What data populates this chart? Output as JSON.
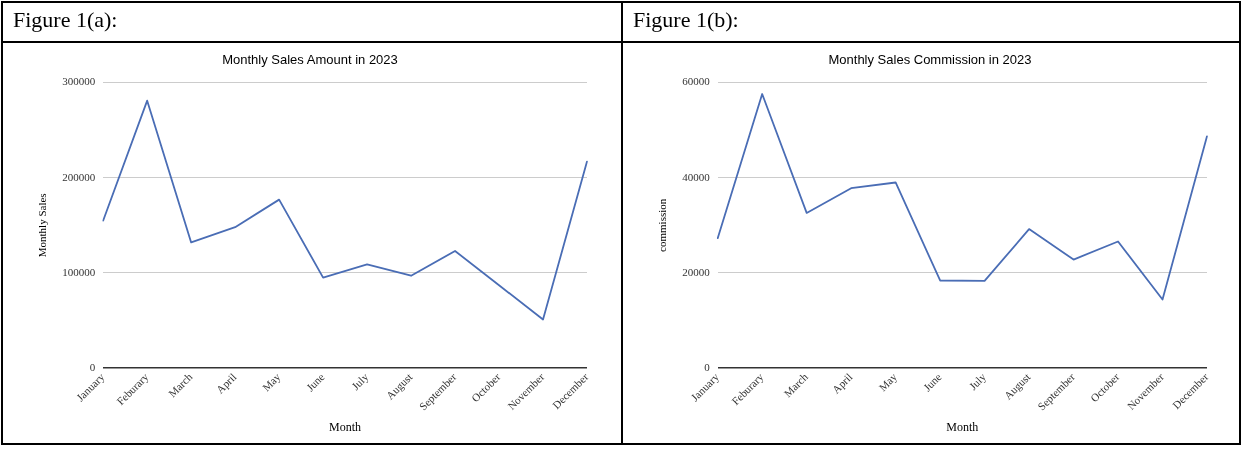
{
  "chart_data": [
    {
      "type": "line",
      "title": "Monthly Sales Amount in 2023",
      "annotations": [
        "Figure 1(a):"
      ],
      "xlabel": "Month",
      "ylabel": "Monthly Sales",
      "categories": [
        "January",
        "Feburary",
        "March",
        "April",
        "May",
        "June",
        "July",
        "August",
        "September",
        "October",
        "November",
        "December"
      ],
      "series": [
        {
          "color": "#4a6db5",
          "values": [
            155000,
            281000,
            132000,
            148000,
            177000,
            95000,
            109000,
            97000,
            123000,
            87000,
            51000,
            217000
          ]
        }
      ],
      "ylim": [
        0,
        300000
      ],
      "yticks": [
        0,
        100000,
        200000,
        300000
      ],
      "grid": "y",
      "legend": false,
      "line_style": "solid"
    },
    {
      "type": "line",
      "title": "Monthly Sales Commission in 2023",
      "annotations": [
        "Figure 1(b):"
      ],
      "xlabel": "Month",
      "ylabel": "commission",
      "categories": [
        "January",
        "Feburary",
        "March",
        "April",
        "May",
        "June",
        "July",
        "August",
        "September",
        "October",
        "November",
        "December"
      ],
      "series": [
        {
          "color": "#4a6db5",
          "values": [
            27300,
            57600,
            32600,
            37800,
            39000,
            18400,
            18300,
            29200,
            22800,
            26600,
            14400,
            48700
          ]
        }
      ],
      "ylim": [
        0,
        60000
      ],
      "yticks": [
        0,
        20000,
        40000,
        60000
      ],
      "grid": "y",
      "legend": false,
      "line_style": "solid"
    }
  ]
}
